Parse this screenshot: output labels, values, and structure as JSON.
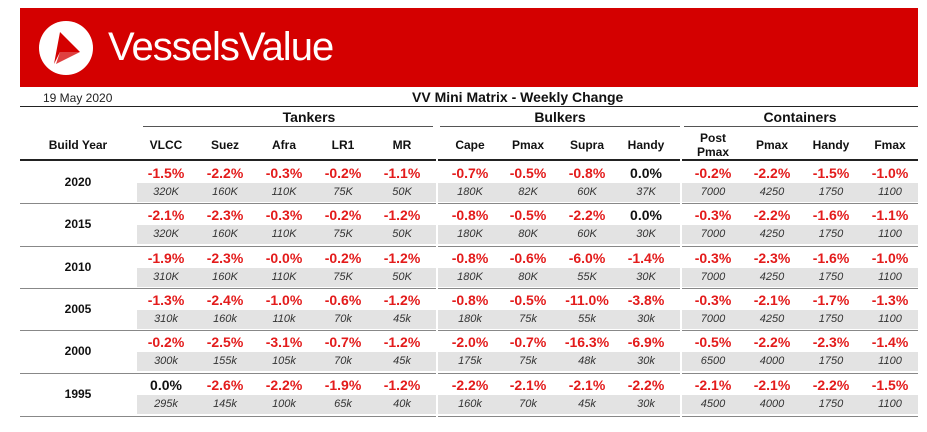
{
  "brand": {
    "name": "VesselsValue",
    "logo_icon": "vesselsvalue-logo-icon",
    "banner_color": "#d40000"
  },
  "date": "19 May 2020",
  "title": "VV Mini Matrix - Weekly Change",
  "groups": [
    {
      "label": "Tankers"
    },
    {
      "label": "Bulkers"
    },
    {
      "label": "Containers"
    }
  ],
  "build_year_label": "Build Year",
  "columns": [
    "VLCC",
    "Suez",
    "Afra",
    "LR1",
    "MR",
    "Cape",
    "Pmax",
    "Supra",
    "Handy",
    "Post\nPmax",
    "Pmax",
    "Handy",
    "Fmax"
  ],
  "rows": [
    {
      "year": "2020",
      "values": [
        "-1.5%",
        "-2.2%",
        "-0.3%",
        "-0.2%",
        "-1.1%",
        "-0.7%",
        "-0.5%",
        "-0.8%",
        "0.0%",
        "-0.2%",
        "-2.2%",
        "-1.5%",
        "-1.0%"
      ],
      "sizes": [
        "320K",
        "160K",
        "110K",
        "75K",
        "50K",
        "180K",
        "82K",
        "60K",
        "37K",
        "7000",
        "4250",
        "1750",
        "1100"
      ]
    },
    {
      "year": "2015",
      "values": [
        "-2.1%",
        "-2.3%",
        "-0.3%",
        "-0.2%",
        "-1.2%",
        "-0.8%",
        "-0.5%",
        "-2.2%",
        "0.0%",
        "-0.3%",
        "-2.2%",
        "-1.6%",
        "-1.1%"
      ],
      "sizes": [
        "320K",
        "160K",
        "110K",
        "75K",
        "50K",
        "180K",
        "80K",
        "60K",
        "30K",
        "7000",
        "4250",
        "1750",
        "1100"
      ]
    },
    {
      "year": "2010",
      "values": [
        "-1.9%",
        "-2.3%",
        "-0.0%",
        "-0.2%",
        "-1.2%",
        "-0.8%",
        "-0.6%",
        "-6.0%",
        "-1.4%",
        "-0.3%",
        "-2.3%",
        "-1.6%",
        "-1.0%"
      ],
      "sizes": [
        "310K",
        "160K",
        "110K",
        "75K",
        "50K",
        "180K",
        "80K",
        "55K",
        "30K",
        "7000",
        "4250",
        "1750",
        "1100"
      ]
    },
    {
      "year": "2005",
      "values": [
        "-1.3%",
        "-2.4%",
        "-1.0%",
        "-0.6%",
        "-1.2%",
        "-0.8%",
        "-0.5%",
        "-11.0%",
        "-3.8%",
        "-0.3%",
        "-2.1%",
        "-1.7%",
        "-1.3%"
      ],
      "sizes": [
        "310k",
        "160k",
        "110k",
        "70k",
        "45k",
        "180k",
        "75k",
        "55k",
        "30k",
        "7000",
        "4250",
        "1750",
        "1100"
      ]
    },
    {
      "year": "2000",
      "values": [
        "-0.2%",
        "-2.5%",
        "-3.1%",
        "-0.7%",
        "-1.2%",
        "-2.0%",
        "-0.7%",
        "-16.3%",
        "-6.9%",
        "-0.5%",
        "-2.2%",
        "-2.3%",
        "-1.4%"
      ],
      "sizes": [
        "300k",
        "155k",
        "105k",
        "70k",
        "45k",
        "175k",
        "75k",
        "48k",
        "30k",
        "6500",
        "4000",
        "1750",
        "1100"
      ]
    },
    {
      "year": "1995",
      "values": [
        "0.0%",
        "-2.6%",
        "-2.2%",
        "-1.9%",
        "-1.2%",
        "-2.2%",
        "-2.1%",
        "-2.1%",
        "-2.2%",
        "-2.1%",
        "-2.1%",
        "-2.2%",
        "-1.5%"
      ],
      "sizes": [
        "295k",
        "145k",
        "100k",
        "65k",
        "40k",
        "160k",
        "70k",
        "45k",
        "30k",
        "4500",
        "4000",
        "1750",
        "1100"
      ]
    }
  ],
  "colors": {
    "negative": "#e31b1b",
    "zero": "#111111",
    "size_band": "#e3e3e3"
  }
}
